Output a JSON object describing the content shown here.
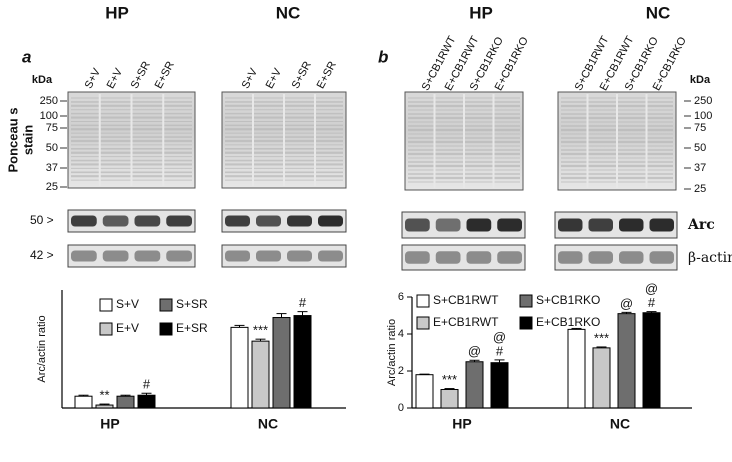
{
  "panels": [
    {
      "label": "a",
      "groups": [
        "HP",
        "NC"
      ],
      "lanes": [
        [
          "S+V",
          "E+V",
          "S+SR",
          "E+SR"
        ],
        [
          "S+V",
          "E+V",
          "S+SR",
          "E+SR"
        ]
      ],
      "kda_label": "kDa",
      "kda_markers": [
        "250",
        "100",
        "75",
        "50",
        "37",
        "25"
      ],
      "stain_label": [
        "Ponceau s",
        "stain"
      ],
      "blot_markers": [
        "50 >",
        "42 >"
      ]
    },
    {
      "label": "b",
      "groups": [
        "HP",
        "NC"
      ],
      "lanes": [
        [
          "S+CB1RWT",
          "E+CB1RWT",
          "S+CB1RKO",
          "E+CB1RKO"
        ],
        [
          "S+CB1RWT",
          "E+CB1RWT",
          "S+CB1RKO",
          "E+CB1RKO"
        ]
      ],
      "kda_label": "kDa",
      "kda_markers": [
        "250",
        "100",
        "75",
        "50",
        "37",
        "25"
      ],
      "blot_labels": [
        "Arc",
        "β-actin"
      ]
    }
  ],
  "chart_data": [
    {
      "type": "bar",
      "y_label": "Arc/actin ratio",
      "categories": [
        "HP",
        "NC"
      ],
      "ylim": [
        0,
        6
      ],
      "series": [
        {
          "name": "S+V",
          "color": "#ffffff",
          "values": [
            0.6,
            4.1
          ],
          "errors": [
            0.05,
            0.1
          ],
          "annotations": [
            [],
            []
          ]
        },
        {
          "name": "E+V",
          "color": "#c8c8c8",
          "values": [
            0.15,
            3.4
          ],
          "errors": [
            0.05,
            0.1
          ],
          "annotations": [
            [
              "**"
            ],
            [
              "***"
            ]
          ]
        },
        {
          "name": "S+SR",
          "color": "#6e6e6e",
          "values": [
            0.6,
            4.6
          ],
          "errors": [
            0.05,
            0.2
          ],
          "annotations": [
            [],
            []
          ]
        },
        {
          "name": "E+SR",
          "color": "#000000",
          "values": [
            0.65,
            4.7
          ],
          "errors": [
            0.1,
            0.2
          ],
          "annotations": [
            [
              "#"
            ],
            [
              "#"
            ]
          ]
        }
      ]
    },
    {
      "type": "bar",
      "y_label": "Arc/actin ratio",
      "categories": [
        "HP",
        "NC"
      ],
      "ylim": [
        0,
        6
      ],
      "yticks": [
        0,
        2,
        4,
        6
      ],
      "series": [
        {
          "name": "S+CB1RWT",
          "color": "#ffffff",
          "values": [
            1.8,
            4.25
          ],
          "errors": [
            0.03,
            0.05
          ],
          "annotations": [
            [],
            []
          ]
        },
        {
          "name": "E+CB1RWT",
          "color": "#c8c8c8",
          "values": [
            1.0,
            3.25
          ],
          "errors": [
            0.05,
            0.05
          ],
          "annotations": [
            [
              "***"
            ],
            [
              "***"
            ]
          ]
        },
        {
          "name": "S+CB1RKO",
          "color": "#6e6e6e",
          "values": [
            2.5,
            5.1
          ],
          "errors": [
            0.08,
            0.07
          ],
          "annotations": [
            [
              "@"
            ],
            [
              "@"
            ]
          ]
        },
        {
          "name": "E+CB1RKO",
          "color": "#000000",
          "values": [
            2.45,
            5.15
          ],
          "errors": [
            0.15,
            0.06
          ],
          "annotations": [
            [
              "@",
              "#"
            ],
            [
              "@",
              "#"
            ]
          ]
        }
      ]
    }
  ]
}
